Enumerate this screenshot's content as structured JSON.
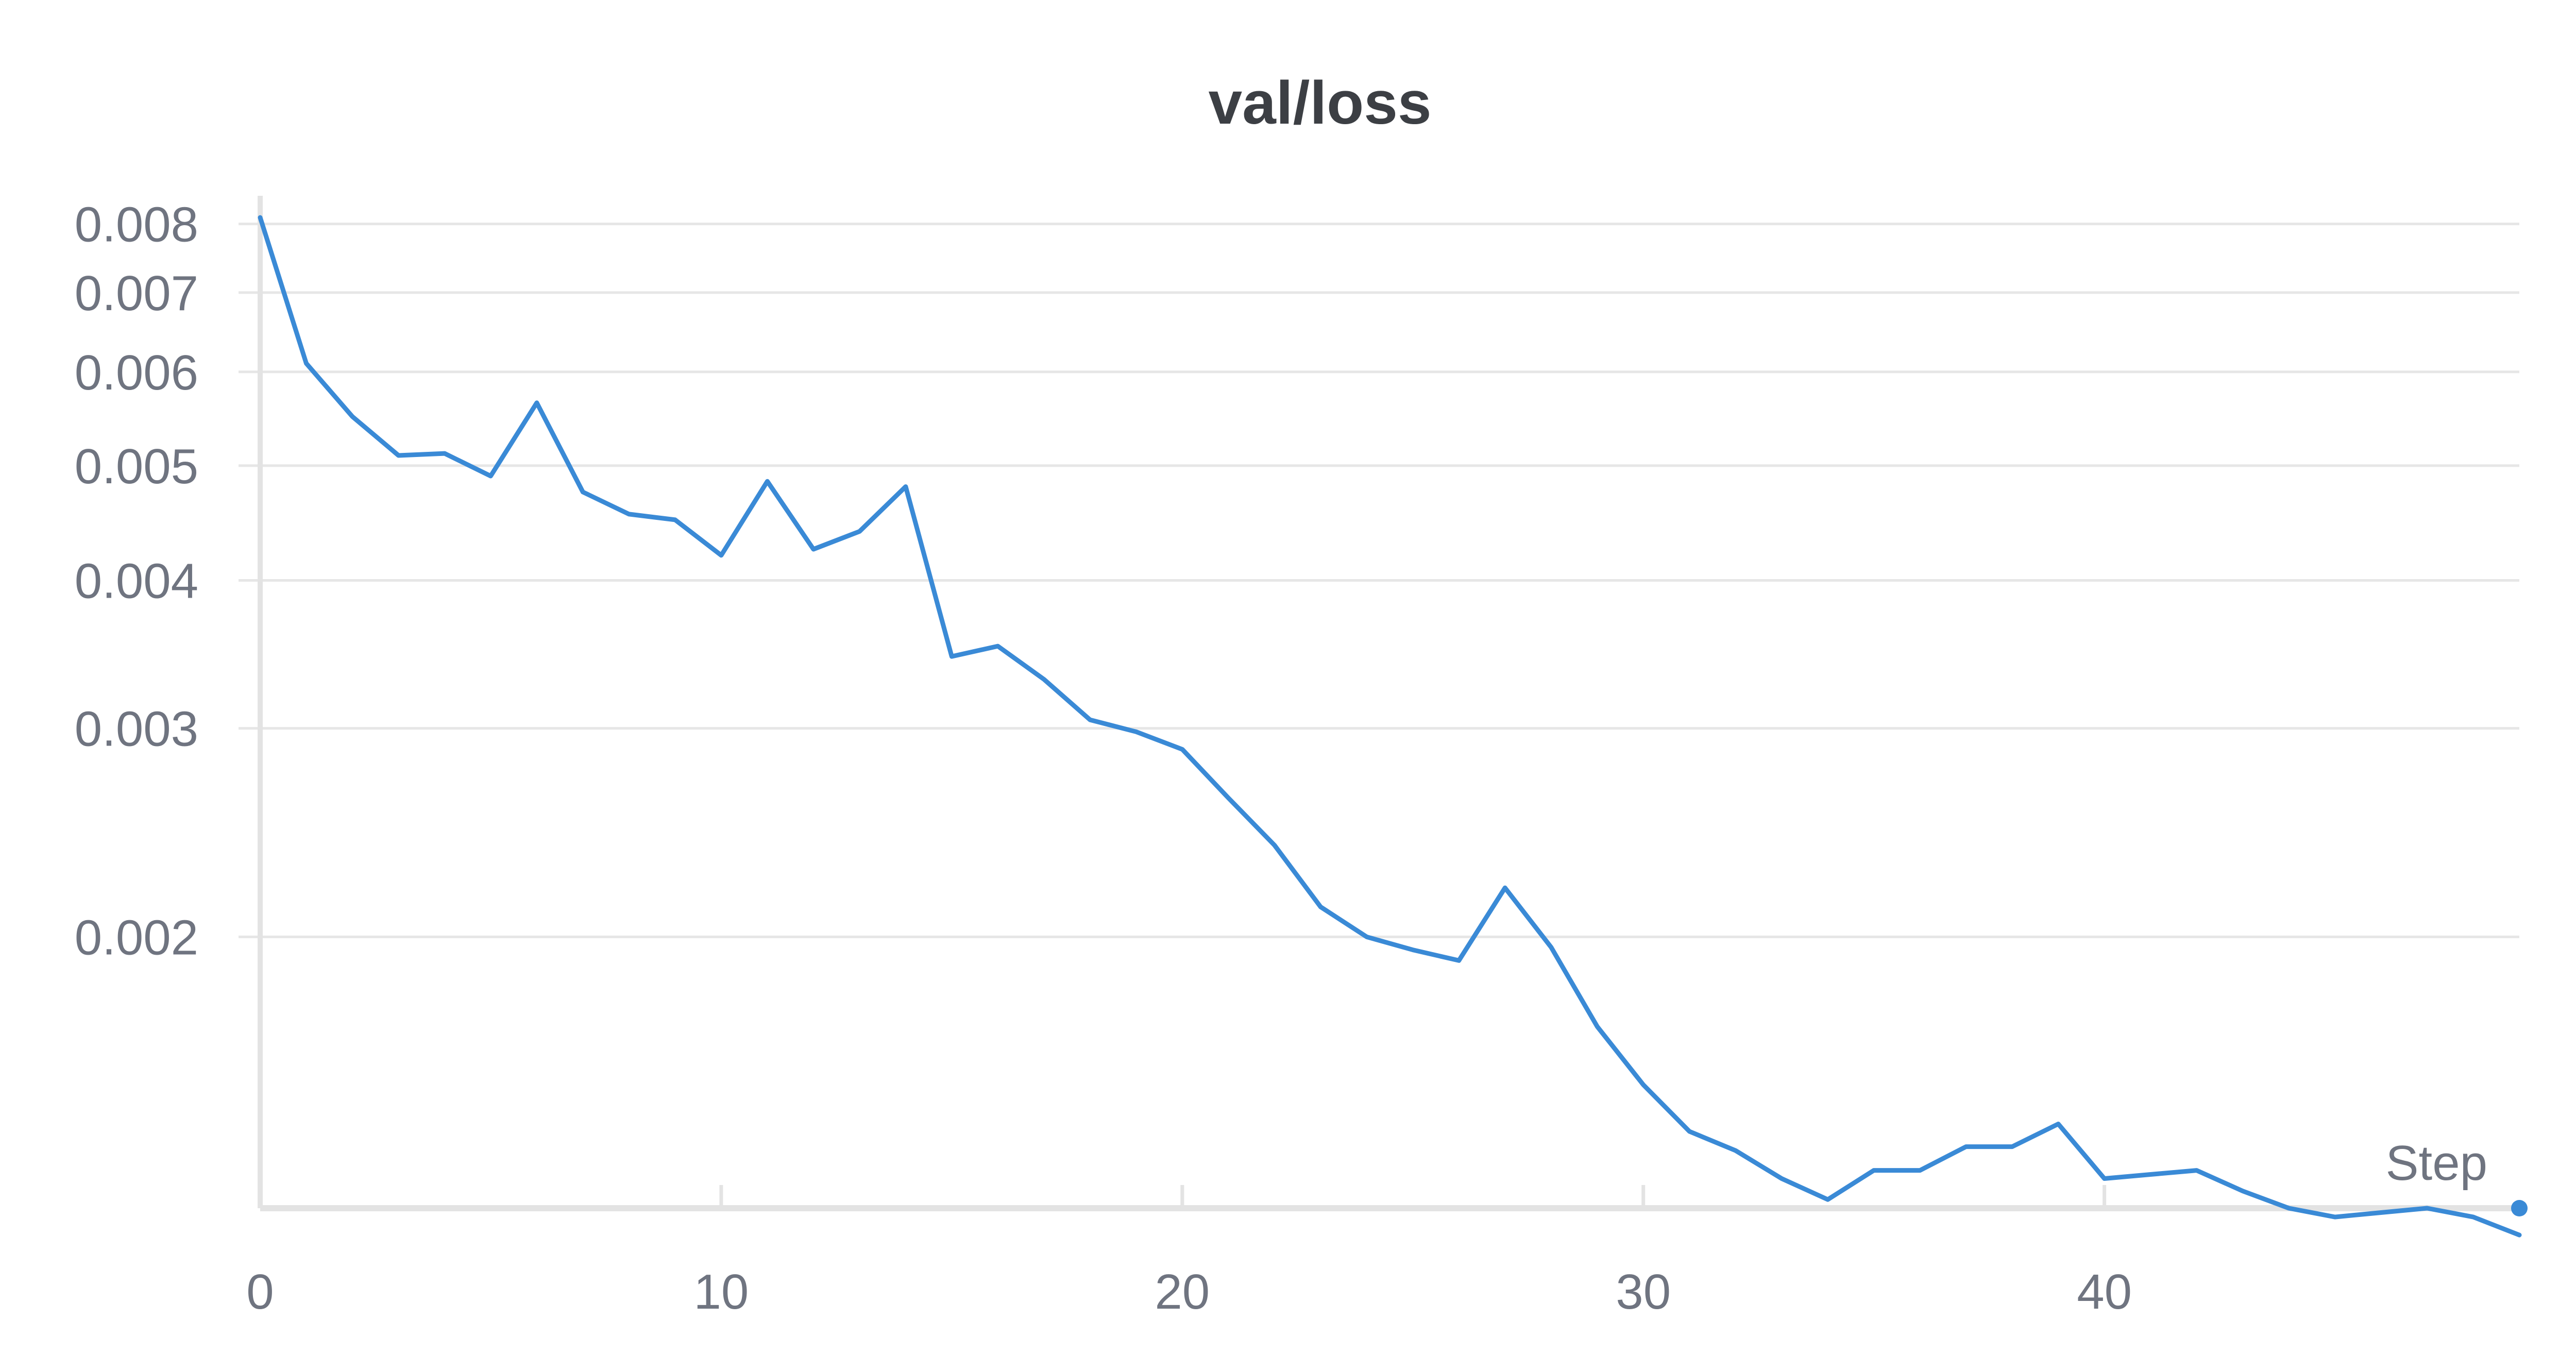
{
  "chart_data": {
    "type": "line",
    "title": "val/loss",
    "xlabel": "Step",
    "ylabel": "",
    "y_scale": "log",
    "xlim": [
      0,
      49
    ],
    "ylim": [
      0.00118,
      0.0082
    ],
    "x_ticks": [
      0,
      10,
      20,
      30,
      40
    ],
    "x_tick_labels": [
      "0",
      "10",
      "20",
      "30",
      "40"
    ],
    "y_ticks": [
      0.008,
      0.007,
      0.006,
      0.005,
      0.004,
      0.003,
      0.002
    ],
    "y_tick_labels": [
      "0.008",
      "0.007",
      "0.006",
      "0.005",
      "0.004",
      "0.003",
      "0.002"
    ],
    "grid": true,
    "series": [
      {
        "color": "#3a8ad6",
        "x": [
          0,
          1,
          2,
          3,
          4,
          5,
          6,
          7,
          8,
          9,
          10,
          11,
          12,
          13,
          14,
          15,
          16,
          17,
          18,
          19,
          20,
          21,
          22,
          23,
          24,
          25,
          26,
          27,
          28,
          29,
          30,
          31,
          32,
          33,
          34,
          35,
          36,
          37,
          38,
          39,
          40,
          41,
          42,
          43,
          44,
          45,
          46,
          47,
          48,
          49
        ],
        "y": [
          0.0081,
          0.0061,
          0.0055,
          0.0051,
          0.00512,
          0.0049,
          0.00565,
          0.00475,
          0.00455,
          0.0045,
          0.0042,
          0.00485,
          0.00425,
          0.0044,
          0.0048,
          0.00345,
          0.00352,
          0.0033,
          0.00305,
          0.00298,
          0.00288,
          0.00262,
          0.00239,
          0.00212,
          0.002,
          0.00195,
          0.00191,
          0.0022,
          0.00196,
          0.00168,
          0.0015,
          0.00137,
          0.00132,
          0.00125,
          0.0012,
          0.00127,
          0.00127,
          0.00133,
          0.00133,
          0.00139,
          0.00125,
          0.00126,
          0.00127,
          0.00122,
          0.00118,
          0.00116,
          0.00117,
          0.00118,
          0.00116,
          0.00112
        ]
      }
    ]
  }
}
